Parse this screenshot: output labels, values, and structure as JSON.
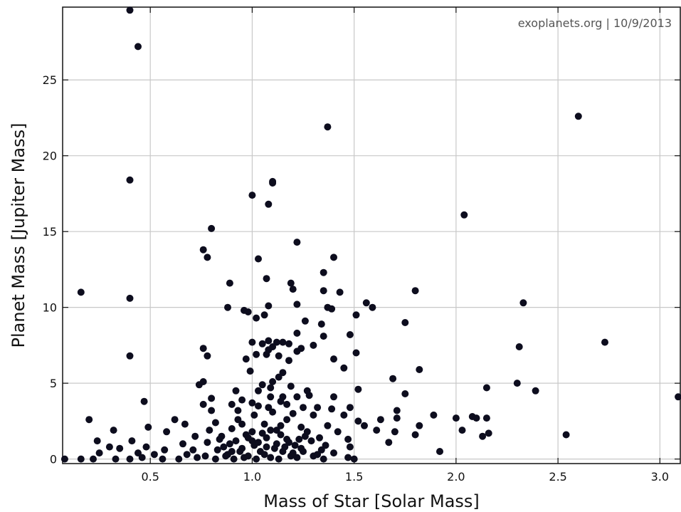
{
  "chart_data": {
    "type": "scatter",
    "title": "",
    "annotation": "exoplanets.org | 10/9/2013",
    "xlabel": "Mass of Star [Solar Mass]",
    "ylabel": "Planet Mass [Jupiter Mass]",
    "xlim": [
      0.07,
      3.1
    ],
    "ylim": [
      -0.3,
      29.8
    ],
    "xticks": [
      0.5,
      1.0,
      1.5,
      2.0,
      2.5,
      3.0
    ],
    "xtick_labels": [
      "0.5",
      "1.0",
      "1.5",
      "2.0",
      "2.5",
      "3.0"
    ],
    "yticks": [
      0,
      5,
      10,
      15,
      20,
      25
    ],
    "ytick_labels": [
      "0",
      "5",
      "10",
      "15",
      "20",
      "25"
    ],
    "grid": true,
    "marker_color": "#0d0d1e",
    "series": [
      {
        "points": [
          [
            0.4,
            29.6
          ],
          [
            0.44,
            27.2
          ],
          [
            2.6,
            22.6
          ],
          [
            1.37,
            21.9
          ],
          [
            0.4,
            18.4
          ],
          [
            1.1,
            18.3
          ],
          [
            1.1,
            18.2
          ],
          [
            1.0,
            17.4
          ],
          [
            1.08,
            16.8
          ],
          [
            2.04,
            16.1
          ],
          [
            0.8,
            15.2
          ],
          [
            1.22,
            14.3
          ],
          [
            0.76,
            13.8
          ],
          [
            0.78,
            13.3
          ],
          [
            1.4,
            13.3
          ],
          [
            1.03,
            13.2
          ],
          [
            1.35,
            12.3
          ],
          [
            1.07,
            11.9
          ],
          [
            0.89,
            11.6
          ],
          [
            1.19,
            11.6
          ],
          [
            1.2,
            11.2
          ],
          [
            1.8,
            11.1
          ],
          [
            1.35,
            11.1
          ],
          [
            1.43,
            11.0
          ],
          [
            0.16,
            11.0
          ],
          [
            0.4,
            10.6
          ],
          [
            1.56,
            10.3
          ],
          [
            1.22,
            10.2
          ],
          [
            2.33,
            10.3
          ],
          [
            1.37,
            10.0
          ],
          [
            1.59,
            10.0
          ],
          [
            0.88,
            10.0
          ],
          [
            1.08,
            10.1
          ],
          [
            1.39,
            9.9
          ],
          [
            0.96,
            9.8
          ],
          [
            0.98,
            9.7
          ],
          [
            1.06,
            9.5
          ],
          [
            1.51,
            9.5
          ],
          [
            1.02,
            9.3
          ],
          [
            1.26,
            9.1
          ],
          [
            1.75,
            9.0
          ],
          [
            1.34,
            8.9
          ],
          [
            1.22,
            8.3
          ],
          [
            1.48,
            8.2
          ],
          [
            1.35,
            8.1
          ],
          [
            1.08,
            7.8
          ],
          [
            1.12,
            7.7
          ],
          [
            1.15,
            7.7
          ],
          [
            1.18,
            7.6
          ],
          [
            1.0,
            7.7
          ],
          [
            1.05,
            7.6
          ],
          [
            2.73,
            7.7
          ],
          [
            1.3,
            7.5
          ],
          [
            1.51,
            7.0
          ],
          [
            0.76,
            7.3
          ],
          [
            2.31,
            7.4
          ],
          [
            1.1,
            7.4
          ],
          [
            1.08,
            7.2
          ],
          [
            1.24,
            7.3
          ],
          [
            1.22,
            7.1
          ],
          [
            0.4,
            6.8
          ],
          [
            0.78,
            6.8
          ],
          [
            1.02,
            6.9
          ],
          [
            1.07,
            6.9
          ],
          [
            1.13,
            6.8
          ],
          [
            0.97,
            6.6
          ],
          [
            1.18,
            6.5
          ],
          [
            1.4,
            6.6
          ],
          [
            1.45,
            6.0
          ],
          [
            1.82,
            5.9
          ],
          [
            0.99,
            5.8
          ],
          [
            1.15,
            5.7
          ],
          [
            1.13,
            5.4
          ],
          [
            1.69,
            5.3
          ],
          [
            1.1,
            5.1
          ],
          [
            1.05,
            4.9
          ],
          [
            0.74,
            4.9
          ],
          [
            0.76,
            5.1
          ],
          [
            2.3,
            5.0
          ],
          [
            1.09,
            4.7
          ],
          [
            1.19,
            4.8
          ],
          [
            1.52,
            4.6
          ],
          [
            2.15,
            4.7
          ],
          [
            1.03,
            4.5
          ],
          [
            0.92,
            4.5
          ],
          [
            1.27,
            4.5
          ],
          [
            2.39,
            4.5
          ],
          [
            1.75,
            4.3
          ],
          [
            1.28,
            4.2
          ],
          [
            1.09,
            4.1
          ],
          [
            1.15,
            4.1
          ],
          [
            1.22,
            4.1
          ],
          [
            0.8,
            4.0
          ],
          [
            1.4,
            4.1
          ],
          [
            3.09,
            4.1
          ],
          [
            0.95,
            3.9
          ],
          [
            0.47,
            3.8
          ],
          [
            1.0,
            3.7
          ],
          [
            1.14,
            3.8
          ],
          [
            0.76,
            3.6
          ],
          [
            0.9,
            3.6
          ],
          [
            1.03,
            3.5
          ],
          [
            1.08,
            3.4
          ],
          [
            1.17,
            3.6
          ],
          [
            1.25,
            3.4
          ],
          [
            1.32,
            3.4
          ],
          [
            1.39,
            3.3
          ],
          [
            1.48,
            3.4
          ],
          [
            1.71,
            3.2
          ],
          [
            0.93,
            3.2
          ],
          [
            0.8,
            3.2
          ],
          [
            1.1,
            3.1
          ],
          [
            1.2,
            3.0
          ],
          [
            1.3,
            2.9
          ],
          [
            1.45,
            2.9
          ],
          [
            1.89,
            2.9
          ],
          [
            2.0,
            2.7
          ],
          [
            2.08,
            2.8
          ],
          [
            2.15,
            2.7
          ],
          [
            2.1,
            2.7
          ],
          [
            0.2,
            2.6
          ],
          [
            0.62,
            2.6
          ],
          [
            1.63,
            2.6
          ],
          [
            1.71,
            2.7
          ],
          [
            1.52,
            2.5
          ],
          [
            0.82,
            2.4
          ],
          [
            0.95,
            2.3
          ],
          [
            1.06,
            2.3
          ],
          [
            1.14,
            2.2
          ],
          [
            1.24,
            2.1
          ],
          [
            1.37,
            2.2
          ],
          [
            1.55,
            2.2
          ],
          [
            1.82,
            2.2
          ],
          [
            0.67,
            2.3
          ],
          [
            0.49,
            2.1
          ],
          [
            0.79,
            1.9
          ],
          [
            0.9,
            2.0
          ],
          [
            1.0,
            1.8
          ],
          [
            1.12,
            1.9
          ],
          [
            1.27,
            1.8
          ],
          [
            1.42,
            1.8
          ],
          [
            1.61,
            1.9
          ],
          [
            1.7,
            1.8
          ],
          [
            2.03,
            1.9
          ],
          [
            2.16,
            1.7
          ],
          [
            1.8,
            1.6
          ],
          [
            0.32,
            1.9
          ],
          [
            0.58,
            1.8
          ],
          [
            0.72,
            1.5
          ],
          [
            0.85,
            1.5
          ],
          [
            0.97,
            1.6
          ],
          [
            1.07,
            1.4
          ],
          [
            1.17,
            1.3
          ],
          [
            1.33,
            1.4
          ],
          [
            1.47,
            1.3
          ],
          [
            2.13,
            1.5
          ],
          [
            2.54,
            1.6
          ],
          [
            1.67,
            1.1
          ],
          [
            0.24,
            1.2
          ],
          [
            0.41,
            1.2
          ],
          [
            0.66,
            1.0
          ],
          [
            0.78,
            1.1
          ],
          [
            0.89,
            1.0
          ],
          [
            1.01,
            0.9
          ],
          [
            1.12,
            1.0
          ],
          [
            1.21,
            0.9
          ],
          [
            1.36,
            0.9
          ],
          [
            1.48,
            0.8
          ],
          [
            0.3,
            0.8
          ],
          [
            0.35,
            0.7
          ],
          [
            0.48,
            0.8
          ],
          [
            0.57,
            0.6
          ],
          [
            0.71,
            0.6
          ],
          [
            0.83,
            0.6
          ],
          [
            0.94,
            0.5
          ],
          [
            1.04,
            0.5
          ],
          [
            1.15,
            0.5
          ],
          [
            1.25,
            0.5
          ],
          [
            1.4,
            0.4
          ],
          [
            1.92,
            0.5
          ],
          [
            0.25,
            0.4
          ],
          [
            0.44,
            0.4
          ],
          [
            0.52,
            0.3
          ],
          [
            0.68,
            0.3
          ],
          [
            0.77,
            0.2
          ],
          [
            0.87,
            0.2
          ],
          [
            0.96,
            0.1
          ],
          [
            1.09,
            0.1
          ],
          [
            1.19,
            0.2
          ],
          [
            1.3,
            0.2
          ],
          [
            1.47,
            0.1
          ],
          [
            0.08,
            0.0
          ],
          [
            0.16,
            0.0
          ],
          [
            0.22,
            0.0
          ],
          [
            0.33,
            0.0
          ],
          [
            0.4,
            0.0
          ],
          [
            0.46,
            0.1
          ],
          [
            0.56,
            0.0
          ],
          [
            0.64,
            0.0
          ],
          [
            0.73,
            0.1
          ],
          [
            0.82,
            0.0
          ],
          [
            0.91,
            0.0
          ],
          [
            1.02,
            0.0
          ],
          [
            1.13,
            0.0
          ],
          [
            1.22,
            0.1
          ],
          [
            1.35,
            0.0
          ],
          [
            1.5,
            0.0
          ],
          [
            0.86,
            0.8
          ],
          [
            0.92,
            1.2
          ],
          [
            0.98,
            1.4
          ],
          [
            1.05,
            1.7
          ],
          [
            1.11,
            0.7
          ],
          [
            1.18,
            1.1
          ],
          [
            1.24,
            0.7
          ],
          [
            1.29,
            1.2
          ],
          [
            1.34,
            0.6
          ],
          [
            0.88,
            0.3
          ],
          [
            0.95,
            0.7
          ],
          [
            1.0,
            1.2
          ],
          [
            1.06,
            0.3
          ],
          [
            1.14,
            1.6
          ],
          [
            1.2,
            0.4
          ],
          [
            1.26,
            1.5
          ],
          [
            1.32,
            0.3
          ],
          [
            0.84,
            1.3
          ],
          [
            0.9,
            0.5
          ],
          [
            1.03,
            1.1
          ],
          [
            1.09,
            1.9
          ],
          [
            1.16,
            0.8
          ],
          [
            1.23,
            1.3
          ],
          [
            0.98,
            0.2
          ],
          [
            1.07,
            0.8
          ],
          [
            1.17,
            2.6
          ],
          [
            1.01,
            2.9
          ],
          [
            0.93,
            2.6
          ]
        ]
      }
    ]
  }
}
